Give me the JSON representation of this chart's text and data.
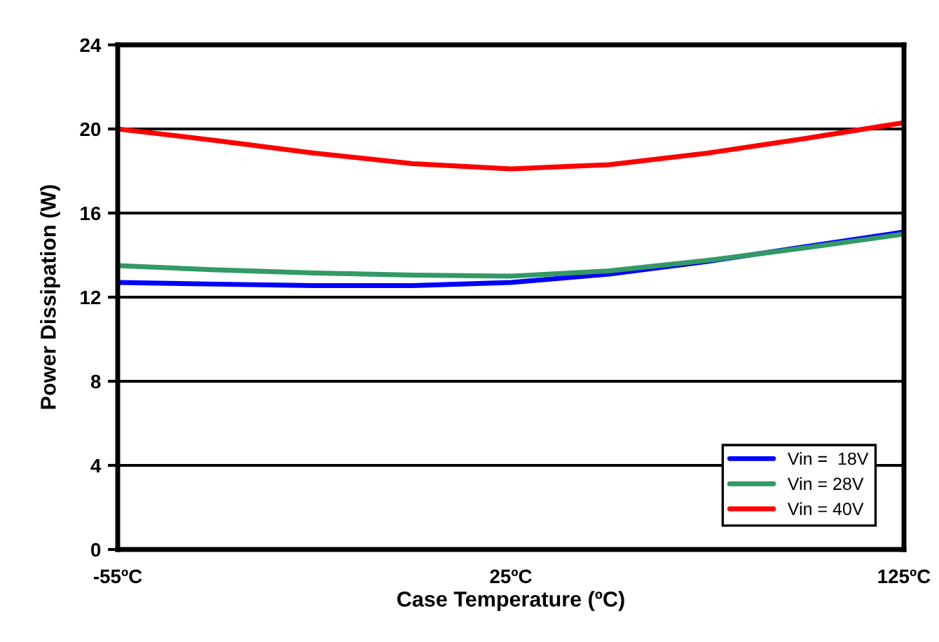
{
  "chart_data": {
    "type": "line",
    "xlabel": "Case Temperature (ºC)",
    "ylabel": "Power Dissipation (W)",
    "categories": [
      "-55ºC",
      null,
      null,
      null,
      "25ºC",
      null,
      null,
      null,
      "125ºC"
    ],
    "series": [
      {
        "name": "Vin =  18V",
        "color": "#0000ff",
        "values": [
          12.7,
          12.62,
          12.55,
          12.55,
          12.7,
          13.1,
          13.7,
          14.4,
          15.1
        ]
      },
      {
        "name": "Vin = 28V",
        "color": "#339966",
        "values": [
          13.5,
          13.3,
          13.15,
          13.05,
          13.0,
          13.25,
          13.75,
          14.35,
          15.0
        ]
      },
      {
        "name": "Vin = 40V",
        "color": "#ff0000",
        "values": [
          20.0,
          19.45,
          18.85,
          18.35,
          18.1,
          18.3,
          18.85,
          19.55,
          20.3
        ]
      }
    ],
    "ylim": [
      0,
      24
    ],
    "yticks": [
      0,
      4,
      8,
      12,
      16,
      20,
      24
    ],
    "grid": "y",
    "legend": "bottom right",
    "marker": "none",
    "line_style": "solid"
  }
}
